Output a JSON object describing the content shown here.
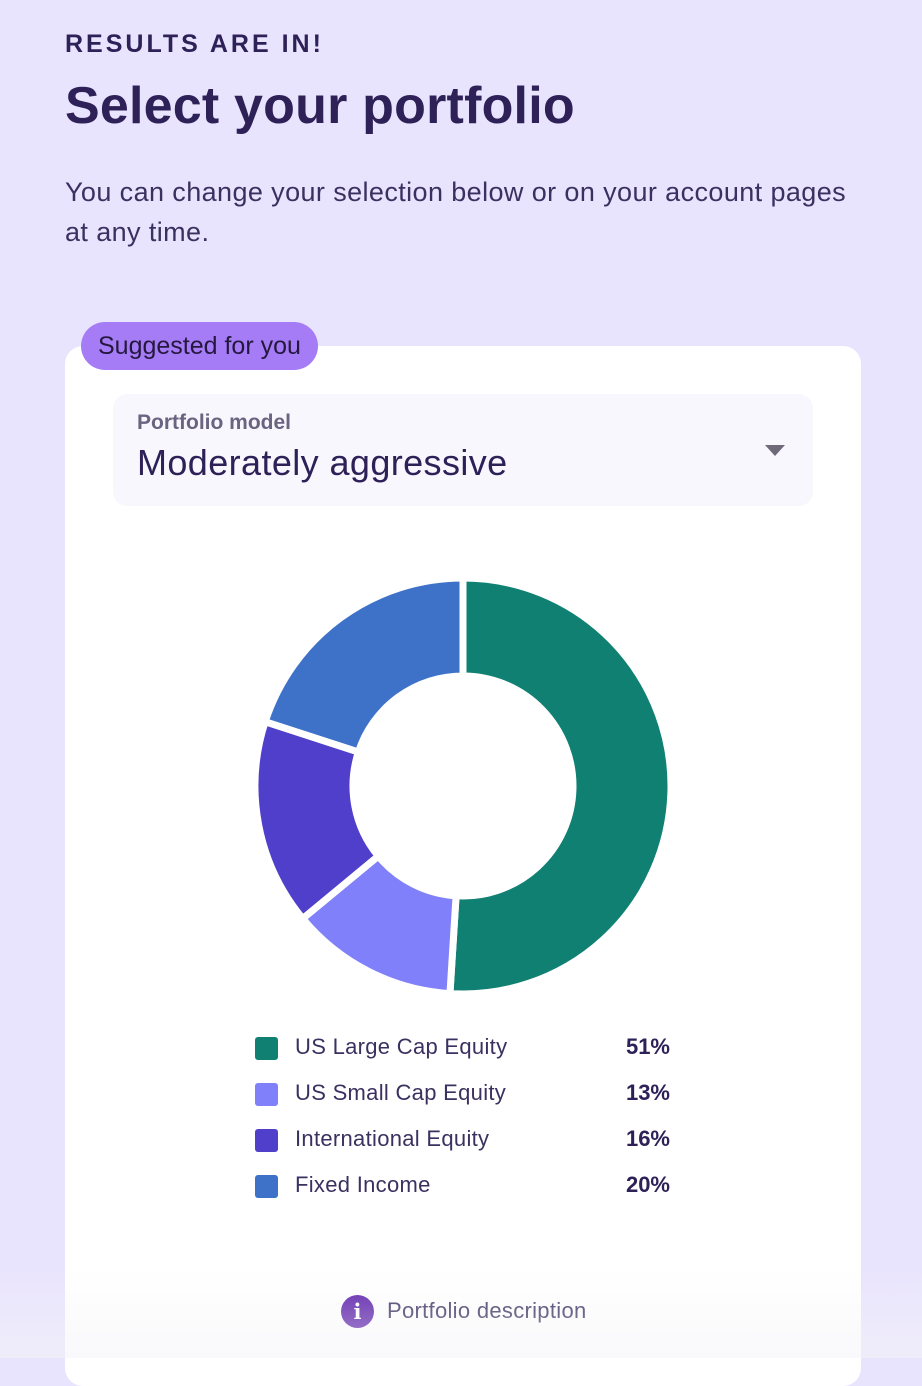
{
  "header": {
    "eyebrow": "RESULTS ARE IN!",
    "title": "Select your portfolio",
    "subtitle": "You can change your selection below or on your account pages at any time."
  },
  "card": {
    "badge": "Suggested for you",
    "select": {
      "label": "Portfolio model",
      "value": "Moderately aggressive",
      "icon": "caret-down-icon"
    },
    "description_link": {
      "label": "Portfolio description",
      "icon": "info-icon"
    }
  },
  "colors": {
    "background": "#e9e4fd",
    "text": "#2e2158",
    "badge": "#a57cf5",
    "info": "#5b1fa9"
  },
  "chart_data": {
    "type": "pie",
    "variant": "donut",
    "categories": [
      "US Large Cap Equity",
      "US Small Cap Equity",
      "International Equity",
      "Fixed Income"
    ],
    "values": [
      51,
      13,
      16,
      20
    ],
    "labels": [
      "51%",
      "13%",
      "16%",
      "20%"
    ],
    "colors": [
      "#0f8072",
      "#8080fa",
      "#4f3fca",
      "#3e72c9"
    ],
    "start": "12 o'clock",
    "direction": "clockwise",
    "legend_position": "bottom"
  }
}
